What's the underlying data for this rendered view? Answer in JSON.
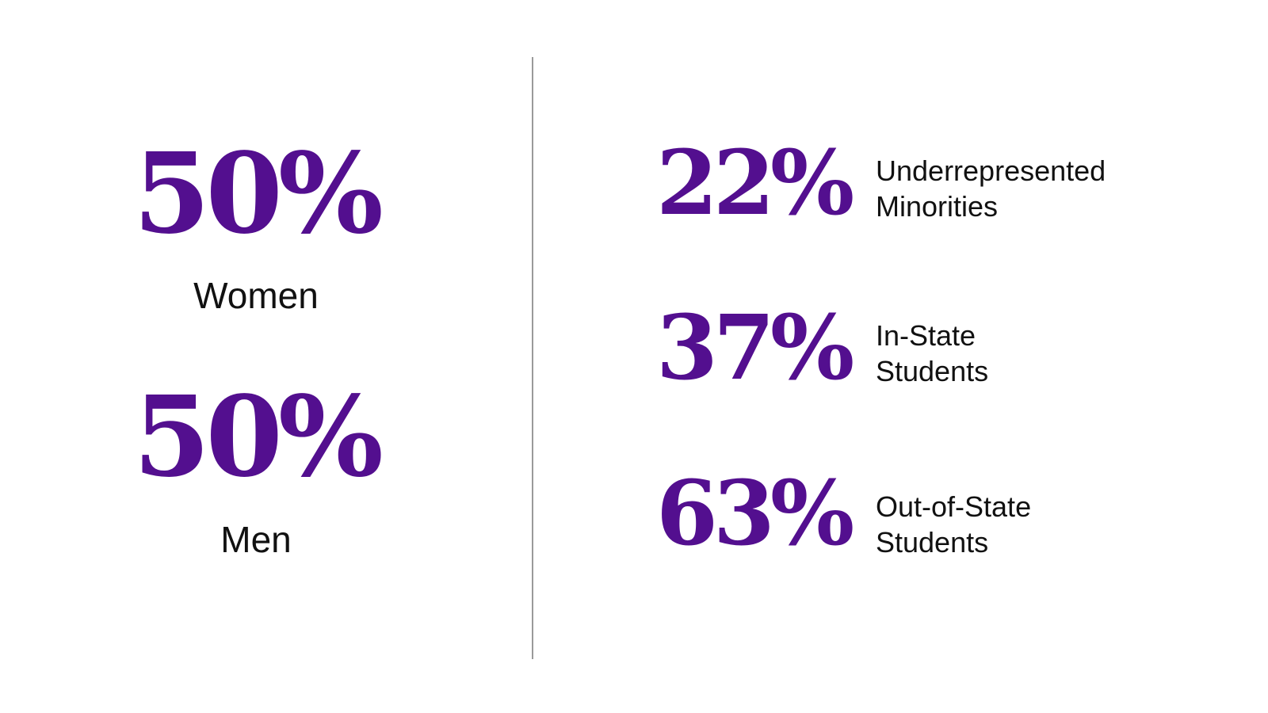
{
  "accent_color": "#530f8f",
  "gender": [
    {
      "value": "50%",
      "label": "Women"
    },
    {
      "value": "50%",
      "label": "Men"
    }
  ],
  "demographics": [
    {
      "value": "22%",
      "label_line1": "Underrepresented",
      "label_line2": "Minorities"
    },
    {
      "value": "37%",
      "label_line1": "In-State",
      "label_line2": "Students"
    },
    {
      "value": "63%",
      "label_line1": "Out-of-State",
      "label_line2": "Students"
    }
  ]
}
